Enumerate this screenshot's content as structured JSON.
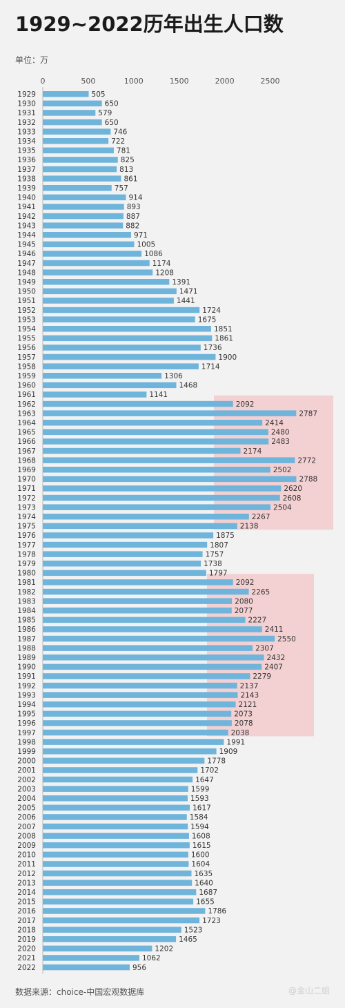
{
  "title": "1929~2022历年出生人口数",
  "unit_label": "单位：万",
  "source_label": "数据来源：choice-中国宏观数据库",
  "watermark": "@金山二姐",
  "colors": {
    "bar": "#6fb4db",
    "highlight": "#f4b9bd",
    "background": "#f2f2f2"
  },
  "chart_data": {
    "type": "bar",
    "orientation": "horizontal",
    "title": "1929~2022历年出生人口数",
    "xlabel": "",
    "ylabel": "",
    "xlim": [
      0,
      2800
    ],
    "xticks": [
      0,
      500,
      1000,
      1500,
      2000,
      2500
    ],
    "grid": false,
    "legend": "none",
    "highlight_ranges": [
      [
        "1962",
        "1975"
      ],
      [
        "1981",
        "1997"
      ]
    ],
    "categories": [
      "1929",
      "1930",
      "1931",
      "1932",
      "1933",
      "1934",
      "1935",
      "1936",
      "1937",
      "1938",
      "1939",
      "1940",
      "1941",
      "1942",
      "1943",
      "1944",
      "1945",
      "1946",
      "1947",
      "1948",
      "1949",
      "1950",
      "1951",
      "1952",
      "1953",
      "1954",
      "1955",
      "1956",
      "1957",
      "1958",
      "1959",
      "1960",
      "1961",
      "1962",
      "1963",
      "1964",
      "1965",
      "1966",
      "1967",
      "1968",
      "1969",
      "1970",
      "1971",
      "1972",
      "1973",
      "1974",
      "1975",
      "1976",
      "1977",
      "1978",
      "1979",
      "1980",
      "1981",
      "1982",
      "1983",
      "1984",
      "1985",
      "1986",
      "1987",
      "1988",
      "1989",
      "1990",
      "1991",
      "1992",
      "1993",
      "1994",
      "1995",
      "1996",
      "1997",
      "1998",
      "1999",
      "2000",
      "2001",
      "2002",
      "2003",
      "2004",
      "2005",
      "2006",
      "2007",
      "2008",
      "2009",
      "2010",
      "2011",
      "2012",
      "2013",
      "2014",
      "2015",
      "2016",
      "2017",
      "2018",
      "2019",
      "2020",
      "2021",
      "2022"
    ],
    "values": [
      505,
      650,
      579,
      650,
      746,
      722,
      781,
      825,
      813,
      861,
      757,
      914,
      893,
      887,
      882,
      971,
      1005,
      1086,
      1174,
      1208,
      1391,
      1471,
      1441,
      1724,
      1675,
      1851,
      1861,
      1736,
      1900,
      1714,
      1306,
      1468,
      1141,
      2092,
      2787,
      2414,
      2480,
      2483,
      2174,
      2772,
      2502,
      2788,
      2620,
      2608,
      2504,
      2267,
      2138,
      1875,
      1807,
      1757,
      1738,
      1797,
      2092,
      2265,
      2080,
      2077,
      2227,
      2411,
      2550,
      2307,
      2432,
      2407,
      2279,
      2137,
      2143,
      2121,
      2073,
      2078,
      2038,
      1991,
      1909,
      1778,
      1702,
      1647,
      1599,
      1593,
      1617,
      1584,
      1594,
      1608,
      1615,
      1600,
      1604,
      1635,
      1640,
      1687,
      1655,
      1786,
      1723,
      1523,
      1465,
      1202,
      1062,
      956
    ]
  }
}
